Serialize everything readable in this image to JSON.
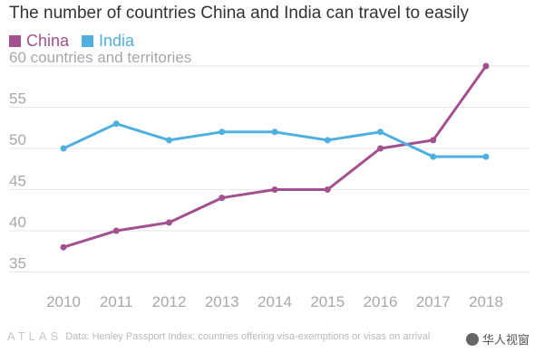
{
  "chart_data": {
    "type": "line",
    "title": "The number of countries China and India can travel to easily",
    "xlabel": "",
    "ylabel": "60 countries and territories",
    "categories": [
      "2010",
      "2011",
      "2012",
      "2013",
      "2014",
      "2015",
      "2016",
      "2017",
      "2018"
    ],
    "series": [
      {
        "name": "China",
        "color": "#a3508e",
        "values": [
          38,
          40,
          41,
          44,
          45,
          45,
          50,
          51,
          60
        ]
      },
      {
        "name": "India",
        "color": "#4fb0e0",
        "values": [
          50,
          53,
          51,
          52,
          52,
          51,
          52,
          49,
          49
        ]
      }
    ],
    "ylim": [
      32,
      62
    ],
    "yticks": [
      35,
      40,
      45,
      50,
      55,
      60
    ],
    "ytick_labels": [
      "35",
      "40",
      "45",
      "50",
      "55",
      "60 countries and territories"
    ],
    "grid": true,
    "legend_position": "top-left"
  },
  "footer": {
    "brand": "ATLAS",
    "source": "Data:  Henley Passport Index; countries offering visa-exemptions or visas on arrival"
  },
  "watermark": {
    "text": "华人视窗"
  }
}
